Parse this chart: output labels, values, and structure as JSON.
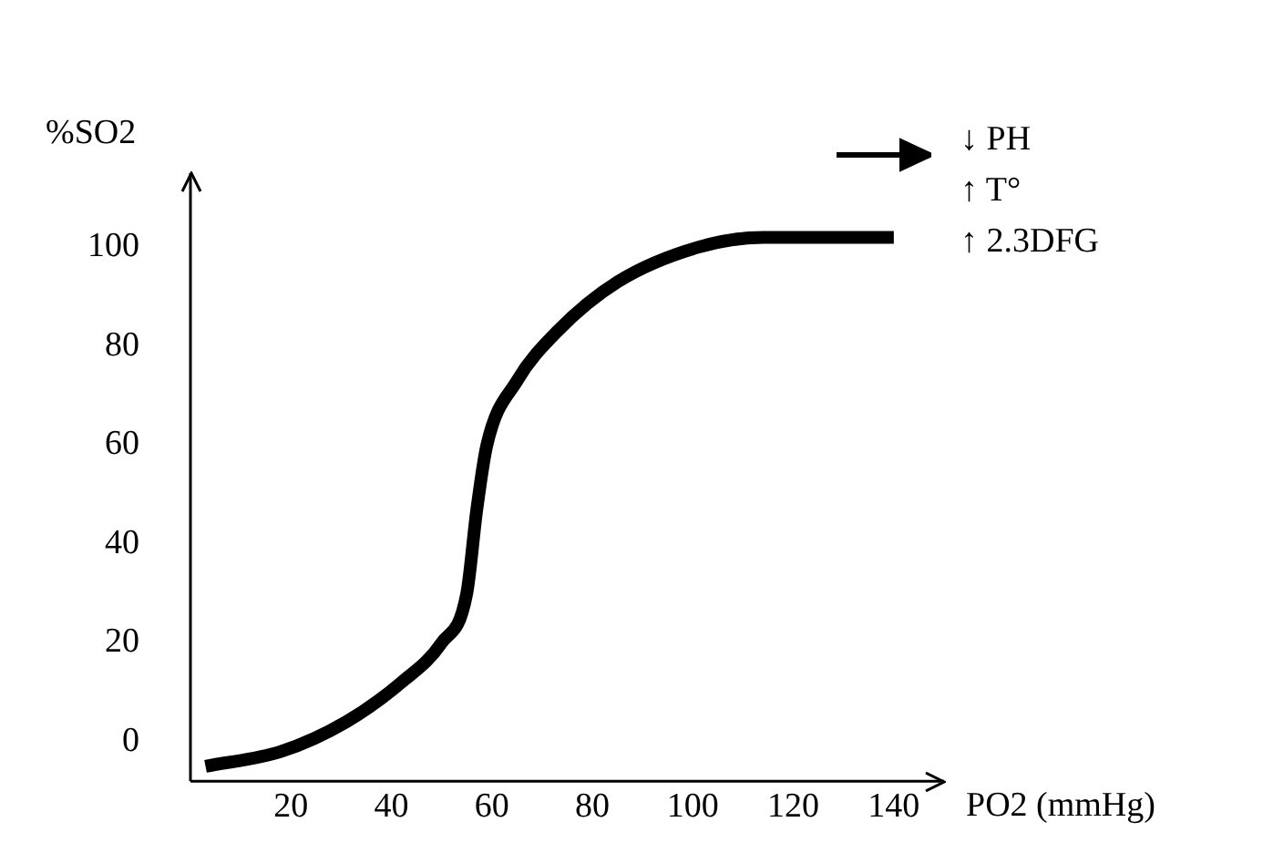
{
  "chart_data": {
    "type": "line",
    "xlabel": "PO2 (mmHg)",
    "ylabel": "%SO2",
    "x": [
      3,
      18,
      31,
      42,
      50,
      55,
      57,
      59,
      65,
      73,
      85,
      101,
      114,
      140
    ],
    "series": [
      {
        "color": "#000000",
        "values": [
          -5,
          -2,
          4,
          12,
          20,
          30,
          47,
          60,
          73,
          83,
          93,
          100,
          102,
          102
        ]
      }
    ],
    "xlim": [
      0,
      150
    ],
    "xticks": [
      20,
      40,
      60,
      80,
      100,
      120,
      140
    ],
    "ylim": [
      -8,
      115
    ],
    "yticks": [
      0,
      20,
      40,
      60,
      80,
      100
    ],
    "grid": false,
    "legend": false,
    "marker": "none",
    "line_style": "solid",
    "annotations": [
      "↓ PH",
      "↑ T°",
      "↑ 2.3DFG"
    ]
  }
}
